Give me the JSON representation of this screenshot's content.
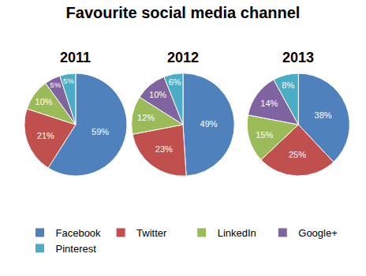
{
  "chart_data": {
    "type": "pie",
    "title": "Favourite social media channel",
    "categories": [
      "Facebook",
      "Twitter",
      "LinkedIn",
      "Google+",
      "Pinterest"
    ],
    "colors": [
      "#4f81bd",
      "#c0504d",
      "#9bbb59",
      "#8064a2",
      "#4bacc6"
    ],
    "data_labels": true,
    "legend": "bottom",
    "pies": [
      {
        "title": "2011",
        "values": [
          59,
          21,
          10,
          5,
          5
        ],
        "value_labels": [
          "59%",
          "21%",
          "10%",
          "5%",
          "5%"
        ]
      },
      {
        "title": "2012",
        "values": [
          49,
          23,
          12,
          10,
          6
        ],
        "value_labels": [
          "49%",
          "23%",
          "12%",
          "10%",
          "6%"
        ]
      },
      {
        "title": "2013",
        "values": [
          38,
          25,
          15,
          14,
          8
        ],
        "value_labels": [
          "38%",
          "25%",
          "15%",
          "14%",
          "8%"
        ]
      }
    ]
  }
}
